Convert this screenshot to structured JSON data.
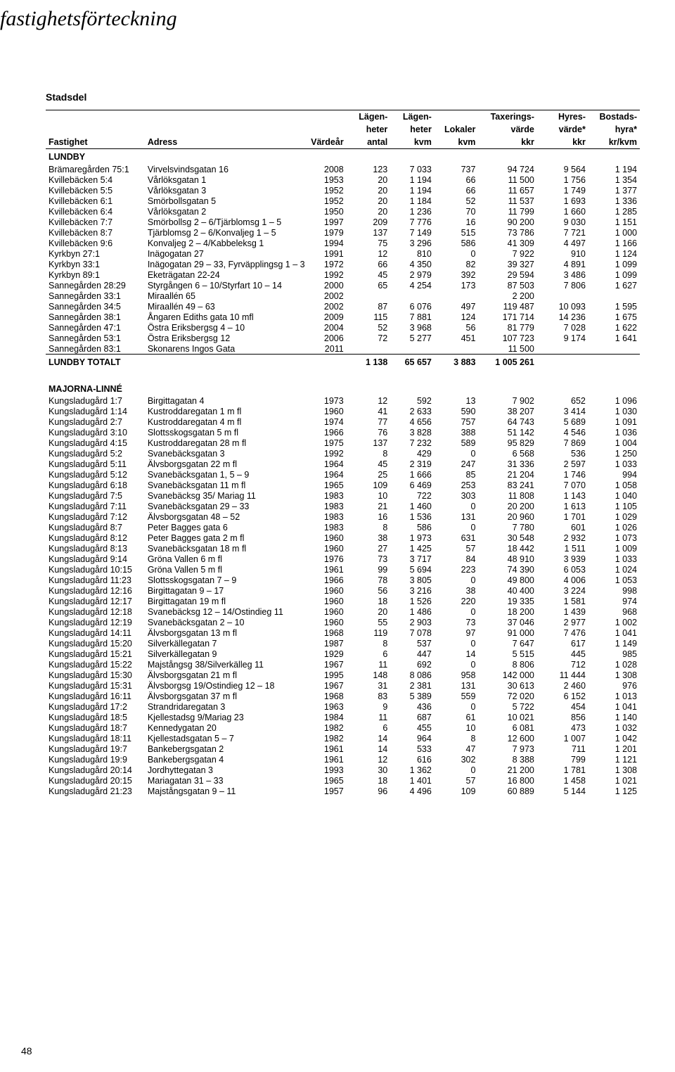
{
  "script_title": "fastighetsförteckning",
  "heading": "Stadsdel",
  "page_number": "48",
  "columns": [
    {
      "l1": "",
      "l2": "",
      "l3": "Fastighet",
      "align": "left"
    },
    {
      "l1": "",
      "l2": "",
      "l3": "Adress",
      "align": "left"
    },
    {
      "l1": "",
      "l2": "",
      "l3": "Värdeår",
      "align": "right"
    },
    {
      "l1": "Lägen-",
      "l2": "heter",
      "l3": "antal",
      "align": "right"
    },
    {
      "l1": "Lägen-",
      "l2": "heter",
      "l3": "kvm",
      "align": "right"
    },
    {
      "l1": "",
      "l2": "Lokaler",
      "l3": "kvm",
      "align": "right"
    },
    {
      "l1": "Taxerings-",
      "l2": "värde",
      "l3": "kkr",
      "align": "right"
    },
    {
      "l1": "Hyres-",
      "l2": "värde*",
      "l3": "kkr",
      "align": "right"
    },
    {
      "l1": "Bostads-",
      "l2": "hyra*",
      "l3": "kr/kvm",
      "align": "right"
    }
  ],
  "sections": [
    {
      "name": "LUNDBY",
      "rows": [
        [
          "Brämaregården 75:1",
          "Virvelsvindsgatan 16",
          "2008",
          "123",
          "7 033",
          "737",
          "94 724",
          "9 564",
          "1 194"
        ],
        [
          "Kvillebäcken 5:4",
          "Vårlöksgatan 1",
          "1953",
          "20",
          "1 194",
          "66",
          "11 500",
          "1 756",
          "1 354"
        ],
        [
          "Kvillebäcken 5:5",
          "Vårlöksgatan 3",
          "1952",
          "20",
          "1 194",
          "66",
          "11 657",
          "1 749",
          "1 377"
        ],
        [
          "Kvillebäcken 6:1",
          "Smörbollsgatan 5",
          "1952",
          "20",
          "1 184",
          "52",
          "11 537",
          "1 693",
          "1 336"
        ],
        [
          "Kvillebäcken 6:4",
          "Vårlöksgatan 2",
          "1950",
          "20",
          "1 236",
          "70",
          "11 799",
          "1 660",
          "1 285"
        ],
        [
          "Kvillebäcken 7:7",
          "Smörbollsg 2 – 6/Tjärblomsg 1 – 5",
          "1997",
          "209",
          "7 776",
          "16",
          "90 200",
          "9 030",
          "1 151"
        ],
        [
          "Kvillebäcken 8:7",
          "Tjärblomsg 2 – 6/Konvaljeg 1 – 5",
          "1979",
          "137",
          "7 149",
          "515",
          "73 786",
          "7 721",
          "1 000"
        ],
        [
          "Kvillebäcken 9:6",
          "Konvaljeg 2 – 4/Kabbeleksg 1",
          "1994",
          "75",
          "3 296",
          "586",
          "41 309",
          "4 497",
          "1 166"
        ],
        [
          "Kyrkbyn 27:1",
          "Inägogatan 27",
          "1991",
          "12",
          "810",
          "0",
          "7 922",
          "910",
          "1 124"
        ],
        [
          "Kyrkbyn 33:1",
          "Inägogatan 29 – 33, Fyrväpplingsg 1 – 3",
          "1972",
          "66",
          "4 350",
          "82",
          "39 327",
          "4 891",
          "1 099"
        ],
        [
          "Kyrkbyn 89:1",
          "Eketrägatan 22-24",
          "1992",
          "45",
          "2 979",
          "392",
          "29 594",
          "3 486",
          "1 099"
        ],
        [
          "Sannegården 28:29",
          "Styrgången 6 – 10/Styrfart 10 – 14",
          "2000",
          "65",
          "4 254",
          "173",
          "87 503",
          "7 806",
          "1 627"
        ],
        [
          "Sannegården 33:1",
          "Miraallén 65",
          "2002",
          "",
          "",
          "",
          "2 200",
          "",
          ""
        ],
        [
          "Sannegården 34:5",
          "Miraallén 49 – 63",
          "2002",
          "87",
          "6 076",
          "497",
          "119 487",
          "10 093",
          "1 595"
        ],
        [
          "Sannegården 38:1",
          "Ångaren Ediths gata 10 mfl",
          "2009",
          "115",
          "7 881",
          "124",
          "171 714",
          "14 236",
          "1 675"
        ],
        [
          "Sannegården 47:1",
          "Östra Eriksbergsg 4 – 10",
          "2004",
          "52",
          "3 968",
          "56",
          "81 779",
          "7 028",
          "1 622"
        ],
        [
          "Sannegården 53:1",
          "Östra Eriksbergsg 12",
          "2006",
          "72",
          "5 277",
          "451",
          "107 723",
          "9 174",
          "1 641"
        ],
        [
          "Sannegården 83:1",
          "Skonarens Ingos Gata",
          "2011",
          "",
          "",
          "",
          "11 500",
          "",
          ""
        ]
      ],
      "total": [
        "LUNDBY TOTALT",
        "",
        "",
        "1 138",
        "65 657",
        "3 883",
        "1 005 261",
        "",
        ""
      ]
    },
    {
      "name": "MAJORNA-LINNÉ",
      "rows": [
        [
          "Kungsladugård 1:7",
          "Birgittagatan 4",
          "1973",
          "12",
          "592",
          "13",
          "7 902",
          "652",
          "1 096"
        ],
        [
          "Kungsladugård 1:14",
          "Kustroddaregatan 1 m fl",
          "1960",
          "41",
          "2 633",
          "590",
          "38 207",
          "3 414",
          "1 030"
        ],
        [
          "Kungsladugård 2:7",
          "Kustroddaregatan 4 m fl",
          "1974",
          "77",
          "4 656",
          "757",
          "64 743",
          "5 689",
          "1 091"
        ],
        [
          "Kungsladugård 3:10",
          "Slottsskogsgatan 5 m fl",
          "1966",
          "76",
          "3 828",
          "388",
          "51 142",
          "4 546",
          "1 036"
        ],
        [
          "Kungsladugård 4:15",
          "Kustroddaregatan 28 m fl",
          "1975",
          "137",
          "7 232",
          "589",
          "95 829",
          "7 869",
          "1 004"
        ],
        [
          "Kungsladugård 5:2",
          "Svanebäcksgatan 3",
          "1992",
          "8",
          "429",
          "0",
          "6 568",
          "536",
          "1 250"
        ],
        [
          "Kungsladugård 5:11",
          "Älvsborgsgatan 22 m fl",
          "1964",
          "45",
          "2 319",
          "247",
          "31 336",
          "2 597",
          "1 033"
        ],
        [
          "Kungsladugård 5:12",
          "Svanebäcksgatan 1, 5 – 9",
          "1964",
          "25",
          "1 666",
          "85",
          "21 204",
          "1 746",
          "994"
        ],
        [
          "Kungsladugård 6:18",
          "Svanebäcksgatan 11 m fl",
          "1965",
          "109",
          "6 469",
          "253",
          "83 241",
          "7 070",
          "1 058"
        ],
        [
          "Kungsladugård 7:5",
          "Svanebäcksg 35/ Mariag 11",
          "1983",
          "10",
          "722",
          "303",
          "11 808",
          "1 143",
          "1 040"
        ],
        [
          "Kungsladugård 7:11",
          "Svanebäcksgatan 29 – 33",
          "1983",
          "21",
          "1 460",
          "0",
          "20 200",
          "1 613",
          "1 105"
        ],
        [
          "Kungsladugård 7:12",
          "Älvsborgsgatan 48 – 52",
          "1983",
          "16",
          "1 536",
          "131",
          "20 960",
          "1 701",
          "1 029"
        ],
        [
          "Kungsladugård 8:7",
          "Peter Bagges gata 6",
          "1983",
          "8",
          "586",
          "0",
          "7 780",
          "601",
          "1 026"
        ],
        [
          "Kungsladugård 8:12",
          "Peter Bagges gata 2 m fl",
          "1960",
          "38",
          "1 973",
          "631",
          "30 548",
          "2 932",
          "1 073"
        ],
        [
          "Kungsladugård 8:13",
          "Svanebäcksgatan 18 m fl",
          "1960",
          "27",
          "1 425",
          "57",
          "18 442",
          "1 511",
          "1 009"
        ],
        [
          "Kungsladugård 9:14",
          "Gröna Vallen 6 m fl",
          "1976",
          "73",
          "3 717",
          "84",
          "48 910",
          "3 939",
          "1 033"
        ],
        [
          "Kungsladugård 10:15",
          "Gröna Vallen 5 m fl",
          "1961",
          "99",
          "5 694",
          "223",
          "74 390",
          "6 053",
          "1 024"
        ],
        [
          "Kungsladugård 11:23",
          "Slottsskogsgatan 7 – 9",
          "1966",
          "78",
          "3 805",
          "0",
          "49 800",
          "4 006",
          "1 053"
        ],
        [
          "Kungsladugård 12:16",
          "Birgittagatan 9 – 17",
          "1960",
          "56",
          "3 216",
          "38",
          "40 400",
          "3 224",
          "998"
        ],
        [
          "Kungsladugård 12:17",
          "Birgittagatan 19 m fl",
          "1960",
          "18",
          "1 526",
          "220",
          "19 335",
          "1 581",
          "974"
        ],
        [
          "Kungsladugård 12:18",
          "Svanebäcksg 12 – 14/Ostindieg 11",
          "1960",
          "20",
          "1 486",
          "0",
          "18 200",
          "1 439",
          "968"
        ],
        [
          "Kungsladugård 12:19",
          "Svanebäcksgatan 2 – 10",
          "1960",
          "55",
          "2 903",
          "73",
          "37 046",
          "2 977",
          "1 002"
        ],
        [
          "Kungsladugård 14:11",
          "Älvsborgsgatan 13 m fl",
          "1968",
          "119",
          "7 078",
          "97",
          "91 000",
          "7 476",
          "1 041"
        ],
        [
          "Kungsladugård 15:20",
          "Silverkällegatan 7",
          "1987",
          "8",
          "537",
          "0",
          "7 647",
          "617",
          "1 149"
        ],
        [
          "Kungsladugård 15:21",
          "Silverkällegatan 9",
          "1929",
          "6",
          "447",
          "14",
          "5 515",
          "445",
          "985"
        ],
        [
          "Kungsladugård 15:22",
          "Majstångsg 38/Silverkälleg 11",
          "1967",
          "11",
          "692",
          "0",
          "8 806",
          "712",
          "1 028"
        ],
        [
          "Kungsladugård 15:30",
          "Älvsborgsgatan 21 m fl",
          "1995",
          "148",
          "8 086",
          "958",
          "142 000",
          "11 444",
          "1 308"
        ],
        [
          "Kungsladugård 15:31",
          "Älvsborgsg 19/Ostindieg 12 – 18",
          "1967",
          "31",
          "2 381",
          "131",
          "30 613",
          "2 460",
          "976"
        ],
        [
          "Kungsladugård 16:11",
          "Älvsborgsgatan 37 m fl",
          "1968",
          "83",
          "5 389",
          "559",
          "72 020",
          "6 152",
          "1 013"
        ],
        [
          "Kungsladugård 17:2",
          "Strandridaregatan 3",
          "1963",
          "9",
          "436",
          "0",
          "5 722",
          "454",
          "1 041"
        ],
        [
          "Kungsladugård 18:5",
          "Kjellestadsg 9/Mariag 23",
          "1984",
          "11",
          "687",
          "61",
          "10 021",
          "856",
          "1 140"
        ],
        [
          "Kungsladugård 18:7",
          "Kennedygatan 20",
          "1982",
          "6",
          "455",
          "10",
          "6 081",
          "473",
          "1 032"
        ],
        [
          "Kungsladugård 18:11",
          "Kjellestadsgatan 5 – 7",
          "1982",
          "14",
          "964",
          "8",
          "12 600",
          "1 007",
          "1 042"
        ],
        [
          "Kungsladugård 19:7",
          "Bankebergsgatan 2",
          "1961",
          "14",
          "533",
          "47",
          "7 973",
          "711",
          "1 201"
        ],
        [
          "Kungsladugård 19:9",
          "Bankebergsgatan 4",
          "1961",
          "12",
          "616",
          "302",
          "8 388",
          "799",
          "1 121"
        ],
        [
          "Kungsladugård 20:14",
          "Jordhyttegatan 3",
          "1993",
          "30",
          "1 362",
          "0",
          "21 200",
          "1 781",
          "1 308"
        ],
        [
          "Kungsladugård 20:15",
          "Mariagatan 31 – 33",
          "1965",
          "18",
          "1 401",
          "57",
          "16 800",
          "1 458",
          "1 021"
        ],
        [
          "Kungsladugård 21:23",
          "Majstångsgatan 9 – 11",
          "1957",
          "96",
          "4 496",
          "109",
          "60 889",
          "5 144",
          "1 125"
        ]
      ]
    }
  ]
}
